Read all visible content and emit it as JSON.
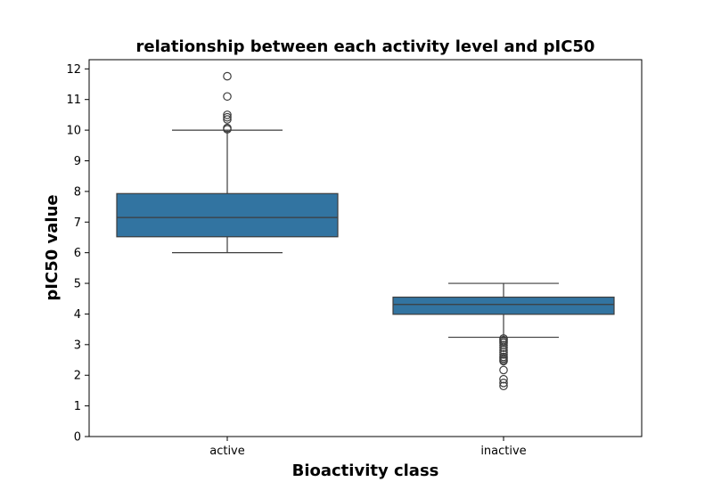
{
  "chart_data": {
    "type": "boxplot",
    "title": "relationship between each activity level and pIC50",
    "xlabel": "Bioactivity class",
    "ylabel": "pIC50 value",
    "ylim": [
      0,
      12.3
    ],
    "yticks": [
      0,
      1,
      2,
      3,
      4,
      5,
      6,
      7,
      8,
      9,
      10,
      11,
      12
    ],
    "grid": false,
    "legend": "none",
    "box_color": "#3274a1",
    "line_color": "#3d3d3d",
    "categories": [
      "active",
      "inactive"
    ],
    "boxes": [
      {
        "category": "active",
        "whisker_low": 6.0,
        "q1": 6.52,
        "median": 7.15,
        "q3": 7.93,
        "whisker_high": 10.0,
        "outliers": [
          11.76,
          11.1,
          10.5,
          10.42,
          10.35,
          10.07,
          10.03
        ]
      },
      {
        "category": "inactive",
        "whisker_low": 3.24,
        "q1": 3.99,
        "median": 4.31,
        "q3": 4.55,
        "whisker_high": 5.0,
        "outliers": [
          3.2,
          3.15,
          3.1,
          3.05,
          2.98,
          2.9,
          2.82,
          2.75,
          2.68,
          2.6,
          2.55,
          2.5,
          2.46,
          2.17,
          1.87,
          1.75,
          1.65
        ]
      }
    ]
  }
}
